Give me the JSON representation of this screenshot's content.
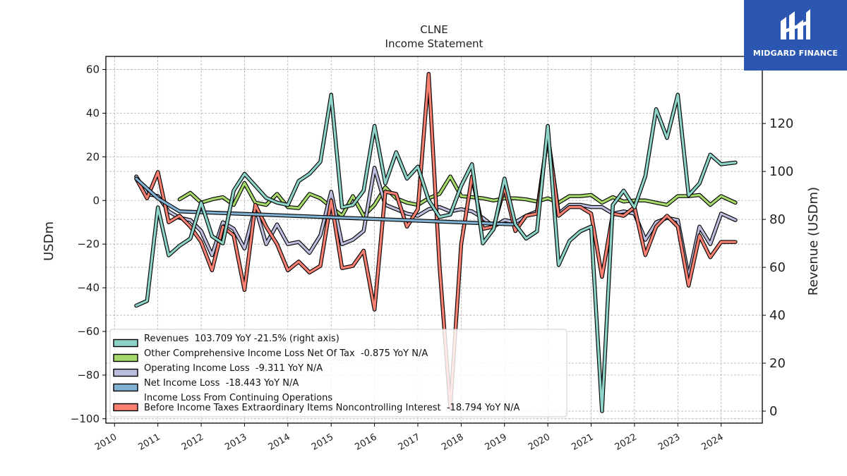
{
  "brand": {
    "name": "MIDGARD FINANCE",
    "color": "#2b57b3"
  },
  "chart_data": {
    "type": "line",
    "title": "CLNE",
    "subtitle": "Income Statement",
    "ylabel": "USDm",
    "ylabel_right": "Revenue (USDm)",
    "ylim": [
      -102,
      66
    ],
    "ylim_right": [
      -5,
      148
    ],
    "yticks": [
      60,
      40,
      20,
      0,
      -20,
      -40,
      -60,
      -80,
      -100
    ],
    "yticks_right": [
      120,
      100,
      80,
      60,
      40,
      20,
      0
    ],
    "xlim": [
      2009.8,
      2024.95
    ],
    "xticks": [
      2010,
      2011,
      2012,
      2013,
      2014,
      2015,
      2016,
      2017,
      2018,
      2019,
      2020,
      2021,
      2022,
      2023,
      2024
    ],
    "grid": true,
    "legend_position": "lower-left",
    "series": [
      {
        "key": "other_ci",
        "name": "Other Comprehensive Income Loss Net Of Tax  -0.875 YoY N/A",
        "color": "#a6d96a",
        "axis": "left",
        "x": [
          2011.5,
          2011.75,
          2012.0,
          2012.25,
          2012.5,
          2012.75,
          2013.0,
          2013.25,
          2013.5,
          2013.75,
          2014.0,
          2014.25,
          2014.5,
          2014.75,
          2015.0,
          2015.25,
          2015.5,
          2015.75,
          2016.0,
          2016.25,
          2016.5,
          2016.75,
          2017.0,
          2017.25,
          2017.5,
          2017.75,
          2018.0,
          2018.25,
          2018.5,
          2018.75,
          2019.0,
          2019.25,
          2019.5,
          2019.75,
          2020.0,
          2020.25,
          2020.5,
          2020.75,
          2021.0,
          2021.25,
          2021.5,
          2021.75,
          2022.0,
          2022.25,
          2022.5,
          2022.75,
          2023.0,
          2023.25,
          2023.5,
          2023.75,
          2024.0,
          2024.33
        ],
        "y": [
          0.5,
          3.5,
          -1,
          0.5,
          1.5,
          -2,
          8,
          -1,
          -2,
          3,
          -3,
          -3.5,
          3,
          1,
          -3,
          -7,
          2,
          -7,
          -2,
          6,
          1,
          -1,
          -2,
          1,
          3,
          11,
          2,
          1.5,
          1,
          0,
          1,
          1,
          0.5,
          -0.5,
          1,
          -1,
          2,
          2,
          2.5,
          -1,
          1.5,
          -0.5,
          0,
          0,
          -1,
          -2,
          2,
          2,
          2.5,
          -2,
          2,
          -1
        ]
      },
      {
        "key": "op_loss",
        "name": "Operating Income Loss  -9.311 YoY N/A",
        "color": "#bcbddc",
        "axis": "left",
        "x": [
          2010.5,
          2010.75,
          2011.0,
          2011.25,
          2011.5,
          2011.75,
          2012.0,
          2012.25,
          2012.5,
          2012.75,
          2013.0,
          2013.25,
          2013.5,
          2013.75,
          2014.0,
          2014.25,
          2014.5,
          2014.75,
          2015.0,
          2015.25,
          2015.5,
          2015.75,
          2016.0,
          2016.25,
          2016.5,
          2016.75,
          2017.0,
          2017.25,
          2017.5,
          2017.75,
          2018.0,
          2018.25,
          2018.5,
          2018.75,
          2019.0,
          2019.25,
          2019.5,
          2019.75,
          2020.0,
          2020.25,
          2020.5,
          2020.75,
          2021.0,
          2021.25,
          2021.5,
          2021.75,
          2022.0,
          2022.25,
          2022.5,
          2022.75,
          2023.0,
          2023.25,
          2023.5,
          2023.75,
          2024.0,
          2024.33
        ],
        "y": [
          11,
          3,
          2,
          -5,
          -8,
          -9,
          -14,
          -25,
          -10,
          -13,
          -22,
          -3,
          -20,
          -11,
          -20,
          -19,
          -24,
          -16,
          4,
          -20,
          -18,
          -14,
          15,
          -2,
          -4,
          -6,
          -7,
          -4,
          -3,
          -5,
          -4,
          -5,
          -8,
          -12,
          -9,
          -10,
          -7,
          -5,
          30,
          -6,
          -2,
          -2,
          -3,
          -3,
          -6,
          -5,
          -6,
          -18,
          -10,
          -8,
          -9,
          -35,
          -12,
          -20,
          -6,
          -9
        ]
      },
      {
        "key": "pretax",
        "name": "Income Loss From Continuing Operations\nBefore Income Taxes Extraordinary Items Noncontrolling Interest  -18.794 YoY N/A",
        "color": "#fb8072",
        "axis": "left",
        "x": [
          2010.5,
          2010.75,
          2011.0,
          2011.25,
          2011.5,
          2011.75,
          2012.0,
          2012.25,
          2012.5,
          2012.75,
          2013.0,
          2013.25,
          2013.5,
          2013.75,
          2014.0,
          2014.25,
          2014.5,
          2014.75,
          2015.0,
          2015.25,
          2015.5,
          2015.75,
          2016.0,
          2016.25,
          2016.5,
          2016.75,
          2017.0,
          2017.25,
          2017.5,
          2017.75,
          2018.0,
          2018.25,
          2018.5,
          2018.75,
          2019.0,
          2019.25,
          2019.5,
          2019.75,
          2020.0,
          2020.25,
          2020.5,
          2020.75,
          2021.0,
          2021.25,
          2021.5,
          2021.75,
          2022.0,
          2022.25,
          2022.5,
          2022.75,
          2023.0,
          2023.25,
          2023.5,
          2023.75,
          2024.0,
          2024.33
        ],
        "y": [
          10,
          1,
          13,
          -10,
          -7,
          -12,
          -19,
          -32,
          -12,
          -16,
          -41,
          -2,
          -12,
          -20,
          -32,
          -28,
          -33,
          -30,
          0,
          -31,
          -30,
          -23,
          -50,
          4,
          3,
          -12,
          -4,
          58,
          -30,
          -95,
          -20,
          11,
          -13,
          -12,
          6,
          -14,
          -7,
          -6,
          30,
          -7,
          -3,
          -3,
          -6,
          -35,
          -6,
          -7,
          -3,
          -25,
          -12,
          -7,
          -12,
          -39,
          -16,
          -26,
          -19,
          -19
        ]
      },
      {
        "key": "net_loss",
        "name": "Net Income Loss  -18.443 YoY N/A",
        "color": "#80b1d3",
        "axis": "left",
        "x": [
          2010.5,
          2011.0,
          2011.5,
          2019.25
        ],
        "y": [
          10,
          1,
          -5,
          -11
        ]
      },
      {
        "key": "revenues",
        "name": "Revenues  103.709 YoY -21.5% (right axis)",
        "color": "#8dd3c7",
        "axis": "right",
        "x": [
          2010.5,
          2010.75,
          2011.0,
          2011.25,
          2011.5,
          2011.75,
          2012.0,
          2012.25,
          2012.5,
          2012.75,
          2013.0,
          2013.25,
          2013.5,
          2013.75,
          2014.0,
          2014.25,
          2014.5,
          2014.75,
          2015.0,
          2015.25,
          2015.5,
          2015.75,
          2016.0,
          2016.25,
          2016.5,
          2016.75,
          2017.0,
          2017.25,
          2017.5,
          2017.75,
          2018.0,
          2018.25,
          2018.5,
          2018.75,
          2019.0,
          2019.25,
          2019.5,
          2019.75,
          2020.0,
          2020.25,
          2020.5,
          2020.75,
          2021.0,
          2021.25,
          2021.5,
          2021.75,
          2022.0,
          2022.25,
          2022.5,
          2022.75,
          2023.0,
          2023.25,
          2023.5,
          2023.75,
          2024.0,
          2024.33
        ],
        "y": [
          44,
          46,
          85,
          65,
          69,
          72,
          87,
          73,
          70,
          92,
          99,
          94,
          89,
          87,
          86,
          96,
          99,
          104,
          132,
          85,
          86,
          92,
          119,
          95,
          108,
          97,
          102,
          88,
          81,
          82,
          94,
          103,
          70,
          76,
          97,
          78,
          72,
          75,
          119,
          61,
          71,
          75,
          77,
          0,
          86,
          92,
          85,
          98,
          126,
          114,
          132,
          90,
          95,
          107,
          103,
          103.709
        ]
      }
    ]
  }
}
